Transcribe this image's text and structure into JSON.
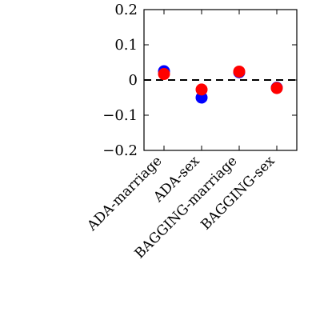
{
  "chart_data": {
    "type": "scatter",
    "categories": [
      "ADA-marriage",
      "ADA-sex",
      "BAGGING-marriage",
      "BAGGING-sex"
    ],
    "ylim": [
      -0.2,
      0.2
    ],
    "yticks": [
      -0.2,
      -0.1,
      0,
      0.1,
      0.2
    ],
    "ytick_labels": [
      "−0.2",
      "−0.1",
      "0",
      "0.1",
      "0.2"
    ],
    "reference_line": {
      "y": 0,
      "style": "dashed",
      "color": "#000000"
    },
    "series": [
      {
        "color": "#0000ff",
        "values": [
          0.025,
          -0.05,
          0.022,
          -0.022
        ]
      },
      {
        "color": "#ff0000",
        "values": [
          0.017,
          -0.027,
          0.024,
          -0.023
        ]
      }
    ],
    "grid": false
  }
}
